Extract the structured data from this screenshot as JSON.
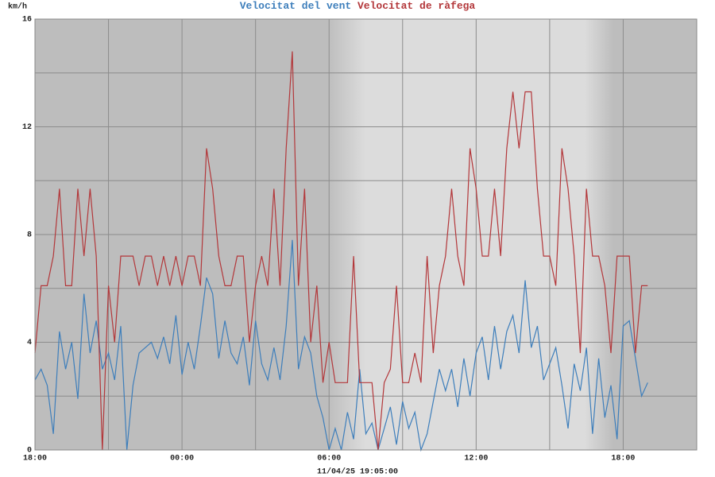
{
  "chart_data": {
    "type": "line",
    "y_label": "km/h",
    "x_label": "11/04/25 19:05:00",
    "x": [
      0,
      0.25,
      0.5,
      0.75,
      1,
      1.25,
      1.5,
      1.75,
      2,
      2.25,
      2.5,
      2.75,
      3,
      3.25,
      3.5,
      3.75,
      4,
      4.25,
      4.5,
      4.75,
      5,
      5.25,
      5.5,
      5.75,
      6,
      6.25,
      6.5,
      6.75,
      7,
      7.25,
      7.5,
      7.75,
      8,
      8.25,
      8.5,
      8.75,
      9,
      9.25,
      9.5,
      9.75,
      10,
      10.25,
      10.5,
      10.75,
      11,
      11.25,
      11.5,
      11.75,
      12,
      12.25,
      12.5,
      12.75,
      13,
      13.25,
      13.5,
      13.75,
      14,
      14.25,
      14.5,
      14.75,
      15,
      15.25,
      15.5,
      15.75,
      16,
      16.25,
      16.5,
      16.75,
      17,
      17.25,
      17.5,
      17.75,
      18,
      18.25,
      18.5,
      18.75,
      19,
      19.25,
      19.5,
      19.75,
      20,
      20.25,
      20.5,
      20.75,
      21,
      21.25,
      21.5,
      21.75,
      22,
      22.25,
      22.5,
      22.75,
      23,
      23.25,
      23.5,
      23.75,
      24,
      24.25,
      24.5,
      24.75,
      25
    ],
    "series": [
      {
        "name": "Velocitat del vent",
        "color": "#3d7ebb",
        "values": [
          2.6,
          3.0,
          2.4,
          0.6,
          4.4,
          3.0,
          4.0,
          1.9,
          5.8,
          3.6,
          4.8,
          3.0,
          3.6,
          2.6,
          4.6,
          0,
          2.4,
          3.6,
          3.8,
          4.0,
          3.4,
          4.2,
          3.2,
          5.0,
          2.8,
          4.0,
          3.0,
          4.6,
          6.4,
          5.8,
          3.4,
          4.8,
          3.6,
          3.2,
          4.2,
          2.4,
          4.8,
          3.2,
          2.6,
          3.8,
          2.6,
          4.6,
          7.8,
          3.0,
          4.2,
          3.6,
          2.0,
          1.2,
          0,
          0.8,
          0,
          1.4,
          0.4,
          3.0,
          0.6,
          1.0,
          0,
          0.8,
          1.6,
          0.2,
          1.8,
          0.8,
          1.4,
          0,
          0.6,
          1.8,
          3.0,
          2.2,
          3.0,
          1.6,
          3.4,
          2.0,
          3.6,
          4.2,
          2.6,
          4.6,
          3.0,
          4.4,
          5.0,
          3.6,
          6.3,
          3.8,
          4.6,
          2.6,
          3.2,
          3.8,
          2.4,
          0.8,
          3.2,
          2.2,
          3.8,
          0.6,
          3.4,
          1.2,
          2.4,
          0.4,
          4.6,
          4.8,
          3.4,
          2.0,
          2.5
        ]
      },
      {
        "name": "Velocitat de ràfega",
        "color": "#b3373a",
        "values": [
          3.6,
          6.1,
          6.1,
          7.2,
          9.7,
          6.1,
          6.1,
          9.7,
          7.2,
          9.7,
          7.2,
          0,
          6.1,
          4.0,
          7.2,
          7.2,
          7.2,
          6.1,
          7.2,
          7.2,
          6.1,
          7.2,
          6.1,
          7.2,
          6.1,
          7.2,
          7.2,
          6.1,
          11.2,
          9.7,
          7.2,
          6.1,
          6.1,
          7.2,
          7.2,
          4.0,
          6.1,
          7.2,
          6.1,
          9.7,
          6.1,
          11.2,
          14.8,
          6.1,
          9.7,
          4.0,
          6.1,
          2.5,
          4.0,
          2.5,
          2.5,
          2.5,
          7.2,
          2.5,
          2.5,
          2.5,
          0,
          2.5,
          3.0,
          6.1,
          2.5,
          2.5,
          3.6,
          2.5,
          7.2,
          3.6,
          6.1,
          7.2,
          9.7,
          7.2,
          6.1,
          11.2,
          9.7,
          7.2,
          7.2,
          9.7,
          7.2,
          11.2,
          13.3,
          11.2,
          13.3,
          13.3,
          9.7,
          7.2,
          7.2,
          6.1,
          11.2,
          9.7,
          7.2,
          3.6,
          9.7,
          7.2,
          7.2,
          6.1,
          3.6,
          7.2,
          7.2,
          7.2,
          3.6,
          6.1,
          6.1
        ]
      }
    ],
    "xlim": [
      0,
      27
    ],
    "xticks": [
      {
        "value": 0,
        "label": "18:00"
      },
      {
        "value": 6,
        "label": "00:00"
      },
      {
        "value": 12,
        "label": "06:00"
      },
      {
        "value": 18,
        "label": "12:00"
      },
      {
        "value": 24,
        "label": "18:00"
      }
    ],
    "ylim": [
      0,
      16
    ],
    "yticks": [
      0,
      4,
      8,
      12,
      16
    ],
    "grid": true
  }
}
